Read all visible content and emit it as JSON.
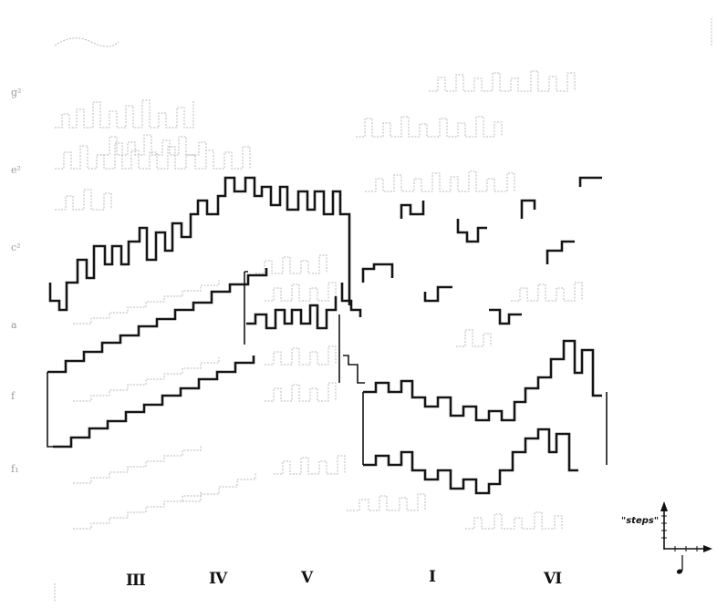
{
  "pitch_labels": [
    "g²",
    "e²",
    "c²",
    "a",
    "f",
    "f₁"
  ],
  "section_labels": [
    "III",
    "IV",
    "V",
    "I",
    "VI"
  ],
  "legend": {
    "vertical_label": "\"steps\""
  },
  "icons": {
    "axes": "axis-arrows-icon",
    "note": "quarter-note-icon"
  },
  "colors": {
    "bold_line": "#151515",
    "faint_line": "#b9b9b9",
    "background": "#ffffff"
  }
}
